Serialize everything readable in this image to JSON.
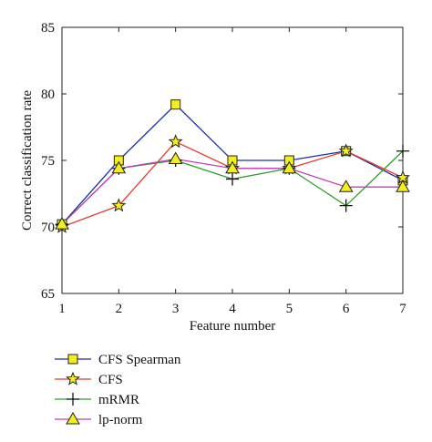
{
  "chart_data": {
    "type": "line",
    "title": "",
    "xlabel": "Feature number",
    "ylabel": "Correct classification rate",
    "x": [
      1,
      2,
      3,
      4,
      5,
      6,
      7
    ],
    "xlim": [
      1,
      7
    ],
    "ylim": [
      65,
      85
    ],
    "xticks": [
      "1",
      "2",
      "3",
      "4",
      "5",
      "6",
      "7"
    ],
    "yticks": [
      "65",
      "70",
      "75",
      "80",
      "85"
    ],
    "grid": false,
    "legend_position": "below",
    "series": [
      {
        "name": "CFS Spearman",
        "marker": "square",
        "color": "#1a2fa6",
        "values": [
          70.2,
          75.0,
          79.2,
          75.0,
          75.0,
          75.7,
          73.5
        ]
      },
      {
        "name": "CFS",
        "marker": "star",
        "color": "#e83a2a",
        "values": [
          70.0,
          71.6,
          76.4,
          74.4,
          74.4,
          75.7,
          73.7
        ]
      },
      {
        "name": "mRMR",
        "marker": "plus",
        "color": "#2aa02a",
        "values": [
          70.2,
          74.4,
          75.0,
          73.6,
          74.4,
          71.6,
          75.7
        ]
      },
      {
        "name": "lp-norm",
        "marker": "triangle",
        "color": "#c23ec2",
        "values": [
          70.2,
          74.4,
          75.1,
          74.4,
          74.4,
          73.0,
          73.0
        ]
      }
    ]
  }
}
